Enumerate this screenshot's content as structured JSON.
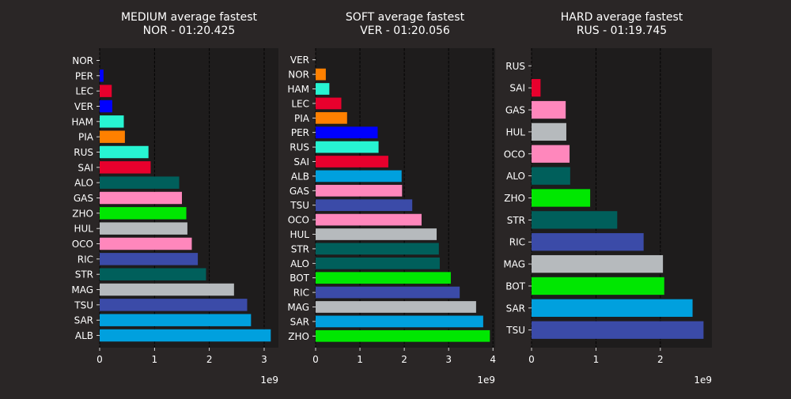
{
  "chart_data": [
    {
      "type": "bar",
      "orientation": "horizontal",
      "title": "MEDIUM average fastest",
      "subtitle": "NOR - 01:20.425",
      "categories": [
        "NOR",
        "PER",
        "LEC",
        "VER",
        "HAM",
        "PIA",
        "RUS",
        "SAI",
        "ALO",
        "GAS",
        "ZHO",
        "HUL",
        "OCO",
        "RIC",
        "STR",
        "MAG",
        "TSU",
        "SAR",
        "ALB"
      ],
      "values": [
        0,
        70000000.0,
        220000000.0,
        230000000.0,
        440000000.0,
        460000000.0,
        890000000.0,
        930000000.0,
        1450000000.0,
        1500000000.0,
        1580000000.0,
        1600000000.0,
        1680000000.0,
        1790000000.0,
        1940000000.0,
        2450000000.0,
        2690000000.0,
        2760000000.0,
        3120000000.0
      ],
      "colors": [
        "#ff8000",
        "#0000ff",
        "#e8002d",
        "#0000ff",
        "#27f4d2",
        "#ff8000",
        "#27f4d2",
        "#e8002d",
        "#005f5b",
        "#ff87bc",
        "#00e701",
        "#b6babd",
        "#ff87bc",
        "#3b4ba8",
        "#005f5b",
        "#b6babd",
        "#3b4ba8",
        "#00a0de",
        "#00a0de"
      ],
      "xlim": [
        0,
        3260000000.0
      ],
      "xticks": [
        0,
        1000000000.0,
        2000000000.0,
        3000000000.0
      ],
      "xtick_labels": [
        "0",
        "1",
        "2",
        "3"
      ],
      "offset_label": "1e9",
      "grid": "x dashed"
    },
    {
      "type": "bar",
      "orientation": "horizontal",
      "title": "SOFT average fastest",
      "subtitle": "VER - 01:20.056",
      "categories": [
        "VER",
        "NOR",
        "HAM",
        "LEC",
        "PIA",
        "PER",
        "RUS",
        "SAI",
        "ALB",
        "GAS",
        "TSU",
        "OCO",
        "HUL",
        "STR",
        "ALO",
        "BOT",
        "RIC",
        "MAG",
        "SAR",
        "ZHO"
      ],
      "values": [
        0,
        230000000.0,
        310000000.0,
        580000000.0,
        710000000.0,
        1400000000.0,
        1420000000.0,
        1640000000.0,
        1940000000.0,
        1950000000.0,
        2180000000.0,
        2390000000.0,
        2730000000.0,
        2780000000.0,
        2800000000.0,
        3050000000.0,
        3250000000.0,
        3620000000.0,
        3780000000.0,
        3930000000.0
      ],
      "colors": [
        "#0000ff",
        "#ff8000",
        "#27f4d2",
        "#e8002d",
        "#ff8000",
        "#0000ff",
        "#27f4d2",
        "#e8002d",
        "#00a0de",
        "#ff87bc",
        "#3b4ba8",
        "#ff87bc",
        "#b6babd",
        "#005f5b",
        "#005f5b",
        "#00e701",
        "#3b4ba8",
        "#b6babd",
        "#00a0de",
        "#00e701"
      ],
      "xlim": [
        0,
        4050000000.0
      ],
      "xticks": [
        0,
        1000000000.0,
        2000000000.0,
        3000000000.0,
        4000000000.0
      ],
      "xtick_labels": [
        "0",
        "1",
        "2",
        "3",
        "4"
      ],
      "offset_label": "1e9",
      "grid": "x dashed"
    },
    {
      "type": "bar",
      "orientation": "horizontal",
      "title": "HARD average fastest",
      "subtitle": "RUS - 01:19.745",
      "categories": [
        "RUS",
        "SAI",
        "GAS",
        "HUL",
        "OCO",
        "ALO",
        "ZHO",
        "STR",
        "RIC",
        "MAG",
        "BOT",
        "SAR",
        "TSU"
      ],
      "values": [
        0,
        140000000.0,
        530000000.0,
        540000000.0,
        590000000.0,
        600000000.0,
        910000000.0,
        1330000000.0,
        1740000000.0,
        2040000000.0,
        2060000000.0,
        2500000000.0,
        2670000000.0
      ],
      "colors": [
        "#27f4d2",
        "#e8002d",
        "#ff87bc",
        "#b6babd",
        "#ff87bc",
        "#005f5b",
        "#00e701",
        "#005f5b",
        "#3b4ba8",
        "#b6babd",
        "#00e701",
        "#00a0de",
        "#3b4ba8"
      ],
      "xlim": [
        0,
        2800000000.0
      ],
      "xticks": [
        0,
        1000000000.0,
        2000000000.0
      ],
      "xtick_labels": [
        "0",
        "1",
        "2"
      ],
      "offset_label": "1e9",
      "grid": "x dashed"
    }
  ]
}
